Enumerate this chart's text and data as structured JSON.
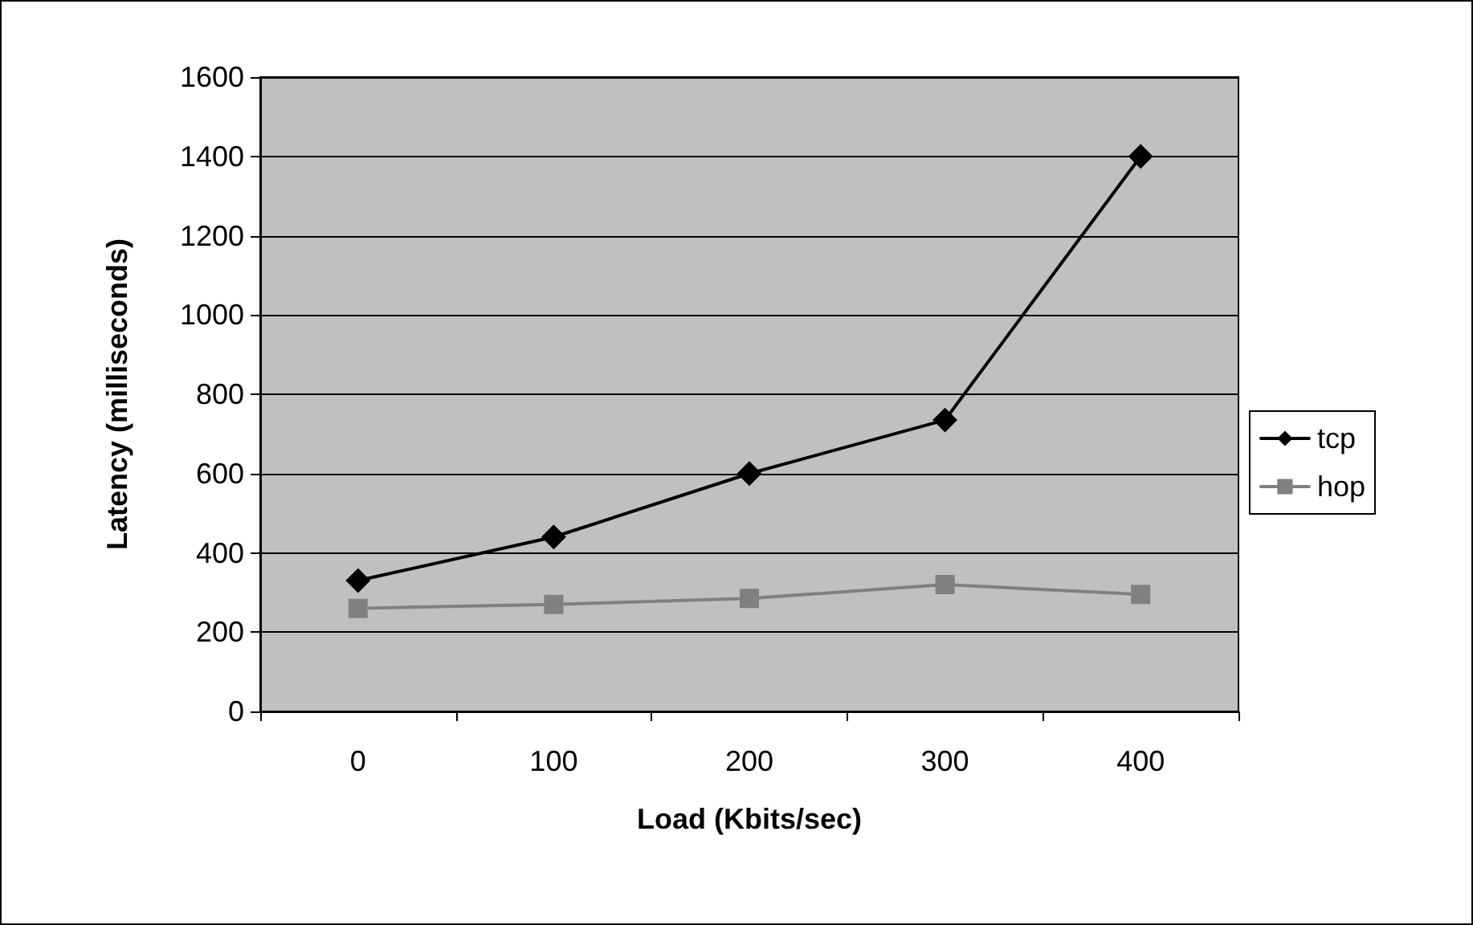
{
  "chart_data": {
    "type": "line",
    "xlabel": "Load (Kbits/sec)",
    "ylabel": "Latency (milliseconds)",
    "categories": [
      "0",
      "100",
      "200",
      "300",
      "400"
    ],
    "series": [
      {
        "name": "tcp",
        "color": "#000000",
        "marker": "diamond",
        "values": [
          330,
          440,
          600,
          735,
          1400
        ]
      },
      {
        "name": "hop",
        "color": "#808080",
        "marker": "square",
        "values": [
          260,
          270,
          285,
          320,
          295
        ]
      }
    ],
    "ylim": [
      0,
      1600
    ],
    "yticks": [
      0,
      200,
      400,
      600,
      800,
      1000,
      1200,
      1400,
      1600
    ],
    "grid": "y",
    "legend": "right",
    "line_style": "solid"
  }
}
